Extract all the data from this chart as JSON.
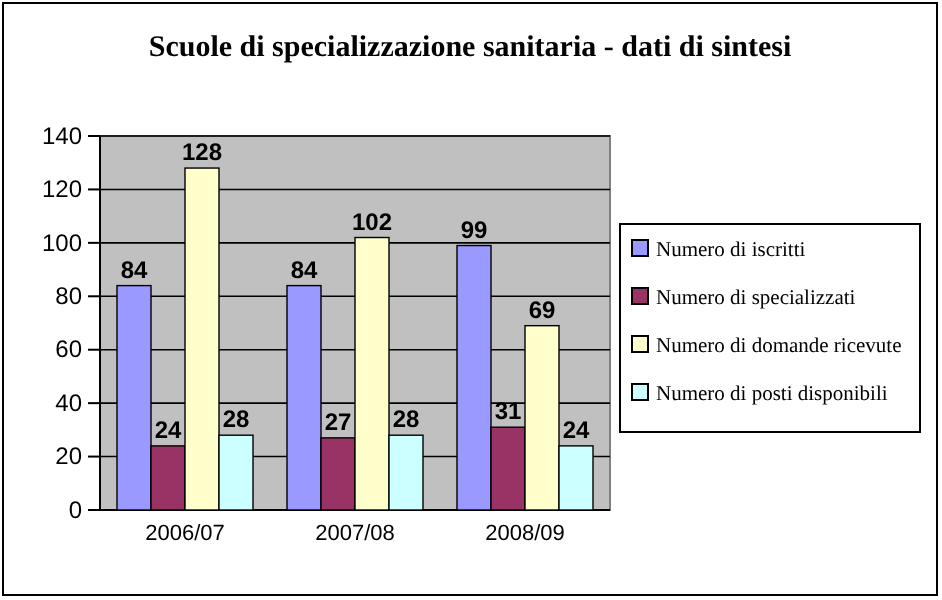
{
  "chart_data": {
    "type": "bar",
    "title": "Scuole di specializzazione sanitaria - dati di sintesi",
    "categories": [
      "2006/07",
      "2007/08",
      "2008/09"
    ],
    "series": [
      {
        "name": "Numero di iscritti",
        "color": "#9999ff",
        "values": [
          84,
          84,
          99
        ]
      },
      {
        "name": "Numero di specializzati",
        "color": "#993366",
        "values": [
          24,
          27,
          31
        ]
      },
      {
        "name": "Numero di domande ricevute",
        "color": "#ffffcc",
        "values": [
          128,
          102,
          69
        ]
      },
      {
        "name": "Numero di posti disponibili",
        "color": "#ccffff",
        "values": [
          28,
          28,
          24
        ]
      }
    ],
    "ylim": [
      0,
      140
    ],
    "yticks": [
      0,
      20,
      40,
      60,
      80,
      100,
      120,
      140
    ],
    "grid": "y",
    "legend": "right",
    "data_labels": true
  }
}
